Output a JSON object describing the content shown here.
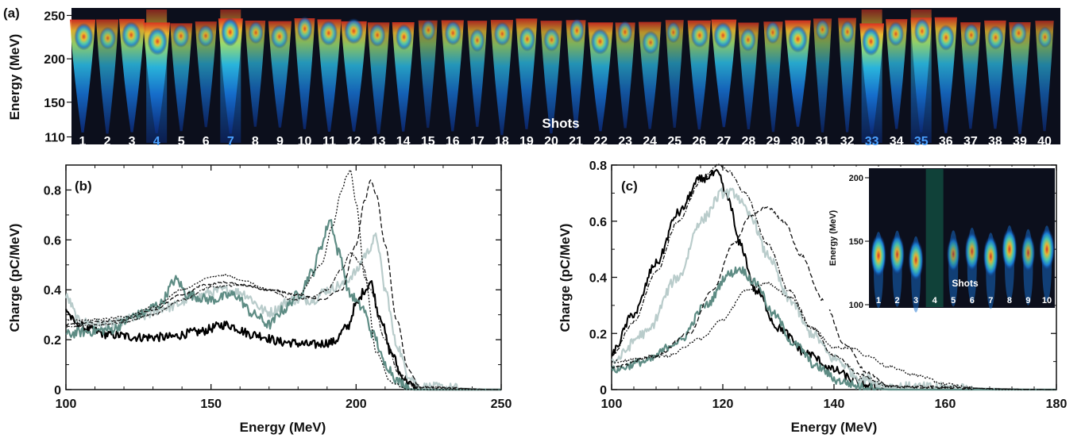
{
  "chart_data": [
    {
      "panel": "(a)",
      "type": "heatmap",
      "ylabel": "Energy (MeV)",
      "yticks": [
        110,
        150,
        200,
        250
      ],
      "ylim": [
        105,
        255
      ],
      "center_label": "Shots",
      "shot_labels": [
        "1",
        "2",
        "3",
        "4",
        "5",
        "6",
        "7",
        "8",
        "9",
        "10",
        "11",
        "12",
        "13",
        "14",
        "15",
        "16",
        "17",
        "18",
        "19",
        "20",
        "21",
        "22",
        "23",
        "24",
        "25",
        "26",
        "27",
        "28",
        "29",
        "30",
        "31",
        "32",
        "33",
        "34",
        "35",
        "36",
        "37",
        "38",
        "39",
        "40"
      ],
      "highlighted_shots": [
        4,
        7,
        33,
        35
      ],
      "shot_intensity": [
        0.9,
        0.55,
        0.85,
        0.95,
        0.6,
        0.5,
        1.0,
        0.55,
        0.65,
        0.7,
        0.75,
        0.8,
        0.6,
        0.8,
        0.4,
        0.7,
        0.6,
        0.65,
        0.7,
        0.6,
        0.65,
        0.8,
        0.55,
        0.6,
        0.45,
        0.7,
        0.85,
        0.6,
        0.55,
        0.9,
        0.4,
        0.55,
        1.0,
        0.7,
        0.75,
        0.8,
        0.6,
        0.65,
        0.55,
        0.45
      ],
      "colormap": [
        "#0a0a2a",
        "#0b3a8a",
        "#1166cc",
        "#1ea0e0",
        "#40d0c0",
        "#c8e040",
        "#f0b020",
        "#e03020"
      ]
    },
    {
      "panel": "(b)",
      "type": "line",
      "xlabel": "Energy (MeV)",
      "ylabel": "Charge (pC/MeV)",
      "xlim": [
        100,
        250
      ],
      "ylim": [
        0,
        0.9
      ],
      "xticks": [
        100,
        150,
        200,
        250
      ],
      "yticks": [
        0,
        0.2,
        0.4,
        0.6,
        0.8
      ],
      "series": [
        {
          "color": "#000000",
          "dash": "",
          "width": 2.2,
          "noise": 0.018,
          "x": [
            100,
            103,
            108,
            115,
            125,
            135,
            145,
            155,
            165,
            175,
            185,
            192,
            197,
            200,
            203,
            205,
            208,
            212,
            216,
            220,
            225,
            250
          ],
          "y": [
            0.32,
            0.27,
            0.24,
            0.22,
            0.21,
            0.21,
            0.23,
            0.26,
            0.22,
            0.19,
            0.18,
            0.19,
            0.25,
            0.34,
            0.4,
            0.43,
            0.3,
            0.15,
            0.05,
            0.01,
            0.0,
            0.0
          ]
        },
        {
          "color": "#b9cccb",
          "dash": "",
          "width": 2.2,
          "noise": 0.02,
          "x": [
            100,
            105,
            115,
            125,
            135,
            145,
            150,
            155,
            160,
            170,
            178,
            185,
            190,
            195,
            200,
            203,
            207,
            210,
            214,
            218,
            222,
            250
          ],
          "y": [
            0.37,
            0.27,
            0.26,
            0.29,
            0.33,
            0.37,
            0.39,
            0.4,
            0.39,
            0.31,
            0.36,
            0.36,
            0.4,
            0.42,
            0.47,
            0.54,
            0.61,
            0.4,
            0.18,
            0.06,
            0.01,
            0.0
          ]
        },
        {
          "color": "#5e8c84",
          "dash": "",
          "width": 2.2,
          "noise": 0.02,
          "x": [
            100,
            105,
            115,
            125,
            132,
            138,
            142,
            150,
            158,
            165,
            170,
            175,
            180,
            185,
            188,
            191,
            194,
            198,
            202,
            206,
            210,
            215,
            220,
            250
          ],
          "y": [
            0.22,
            0.23,
            0.24,
            0.3,
            0.34,
            0.44,
            0.38,
            0.36,
            0.38,
            0.3,
            0.26,
            0.32,
            0.38,
            0.47,
            0.58,
            0.68,
            0.55,
            0.38,
            0.33,
            0.22,
            0.1,
            0.03,
            0.0,
            0.0
          ]
        },
        {
          "color": "#111111",
          "dash": "2,2",
          "width": 1.3,
          "noise": 0.004,
          "x": [
            100,
            110,
            120,
            130,
            140,
            150,
            155,
            160,
            170,
            180,
            188,
            192,
            195,
            197,
            198,
            200,
            203,
            207,
            212,
            218,
            250
          ],
          "y": [
            0.28,
            0.28,
            0.29,
            0.33,
            0.4,
            0.45,
            0.46,
            0.44,
            0.4,
            0.38,
            0.5,
            0.66,
            0.8,
            0.86,
            0.88,
            0.75,
            0.45,
            0.15,
            0.03,
            0.0,
            0.0
          ]
        },
        {
          "color": "#111111",
          "dash": "6,3",
          "width": 1.3,
          "noise": 0.004,
          "x": [
            100,
            110,
            120,
            130,
            140,
            148,
            155,
            160,
            170,
            180,
            188,
            195,
            200,
            203,
            205,
            207,
            210,
            214,
            218,
            222,
            250
          ],
          "y": [
            0.26,
            0.27,
            0.28,
            0.32,
            0.38,
            0.42,
            0.43,
            0.42,
            0.4,
            0.38,
            0.36,
            0.4,
            0.58,
            0.76,
            0.84,
            0.78,
            0.58,
            0.28,
            0.08,
            0.01,
            0.0
          ]
        },
        {
          "color": "#222222",
          "dash": "5,2,1.5,2",
          "width": 1.3,
          "noise": 0.004,
          "x": [
            100,
            110,
            120,
            130,
            140,
            150,
            160,
            170,
            178,
            185,
            190,
            195,
            198,
            202,
            205,
            210,
            215,
            220,
            250
          ],
          "y": [
            0.25,
            0.26,
            0.27,
            0.3,
            0.36,
            0.41,
            0.42,
            0.4,
            0.36,
            0.37,
            0.4,
            0.48,
            0.55,
            0.5,
            0.4,
            0.2,
            0.06,
            0.01,
            0.0
          ]
        }
      ]
    },
    {
      "panel": "(c)",
      "type": "line",
      "xlabel": "Energy (MeV)",
      "ylabel": "Charge (pC/MeV)",
      "xlim": [
        100,
        180
      ],
      "ylim": [
        0,
        0.8
      ],
      "xticks": [
        100,
        120,
        140,
        160,
        180
      ],
      "yticks": [
        0,
        0.2,
        0.4,
        0.6,
        0.8
      ],
      "series": [
        {
          "color": "#000000",
          "dash": "",
          "width": 2.0,
          "noise": 0.015,
          "x": [
            100,
            104,
            108,
            112,
            116,
            119,
            121,
            123,
            126,
            130,
            135,
            140,
            144,
            147,
            150,
            180
          ],
          "y": [
            0.13,
            0.27,
            0.45,
            0.63,
            0.75,
            0.77,
            0.68,
            0.52,
            0.35,
            0.22,
            0.13,
            0.07,
            0.03,
            0.01,
            0.0,
            0.0
          ]
        },
        {
          "color": "#b9cccb",
          "dash": "",
          "width": 2.2,
          "noise": 0.018,
          "x": [
            100,
            106,
            112,
            116,
            120,
            122,
            125,
            128,
            132,
            136,
            140,
            145,
            150,
            180
          ],
          "y": [
            0.1,
            0.2,
            0.4,
            0.6,
            0.7,
            0.7,
            0.62,
            0.48,
            0.32,
            0.2,
            0.11,
            0.04,
            0.01,
            0.0
          ]
        },
        {
          "color": "#5e8c84",
          "dash": "",
          "width": 2.2,
          "noise": 0.015,
          "x": [
            100,
            106,
            112,
            117,
            121,
            123,
            126,
            129,
            133,
            137,
            141,
            145,
            150,
            180
          ],
          "y": [
            0.07,
            0.1,
            0.17,
            0.3,
            0.41,
            0.43,
            0.38,
            0.27,
            0.16,
            0.08,
            0.03,
            0.01,
            0.0,
            0.0
          ]
        },
        {
          "color": "#111111",
          "dash": "5,2,1.5,2",
          "width": 1.3,
          "noise": 0.005,
          "x": [
            100,
            104,
            108,
            112,
            116,
            119,
            121,
            124,
            128,
            132,
            136,
            140,
            145,
            150,
            180
          ],
          "y": [
            0.12,
            0.24,
            0.42,
            0.6,
            0.74,
            0.8,
            0.78,
            0.7,
            0.52,
            0.35,
            0.22,
            0.12,
            0.05,
            0.01,
            0.0
          ]
        },
        {
          "color": "#111111",
          "dash": "6,3",
          "width": 1.3,
          "noise": 0.005,
          "x": [
            100,
            108,
            114,
            118,
            122,
            125,
            128,
            131,
            134,
            138,
            142,
            146,
            150,
            180
          ],
          "y": [
            0.08,
            0.12,
            0.2,
            0.35,
            0.52,
            0.62,
            0.65,
            0.6,
            0.48,
            0.32,
            0.16,
            0.06,
            0.01,
            0.0
          ]
        },
        {
          "color": "#111111",
          "dash": "2,2",
          "width": 1.3,
          "noise": 0.005,
          "x": [
            100,
            110,
            116,
            120,
            124,
            128,
            132,
            136,
            140,
            143,
            146,
            150,
            155,
            160,
            165,
            170,
            180
          ],
          "y": [
            0.1,
            0.12,
            0.18,
            0.25,
            0.35,
            0.38,
            0.33,
            0.22,
            0.15,
            0.15,
            0.12,
            0.08,
            0.05,
            0.02,
            0.005,
            0.0,
            0.0
          ]
        }
      ]
    },
    {
      "panel": "(c) inset",
      "type": "heatmap",
      "ylabel": "Energy (MeV)",
      "yticks": [
        100,
        150,
        200
      ],
      "ylim": [
        100,
        205
      ],
      "center_label": "Shots",
      "shot_labels": [
        "1",
        "2",
        "3",
        "4",
        "5",
        "6",
        "7",
        "8",
        "9",
        "10"
      ],
      "highlighted_shots": [
        4
      ],
      "shot_intensity": [
        0.95,
        0.8,
        0.85,
        0.1,
        0.45,
        0.7,
        0.85,
        0.9,
        0.6,
        0.9
      ],
      "colormap": [
        "#0a0a2a",
        "#0b3a8a",
        "#1166cc",
        "#1ea0e0",
        "#40d0c0",
        "#c8e040",
        "#f0b020",
        "#e03020"
      ]
    }
  ]
}
